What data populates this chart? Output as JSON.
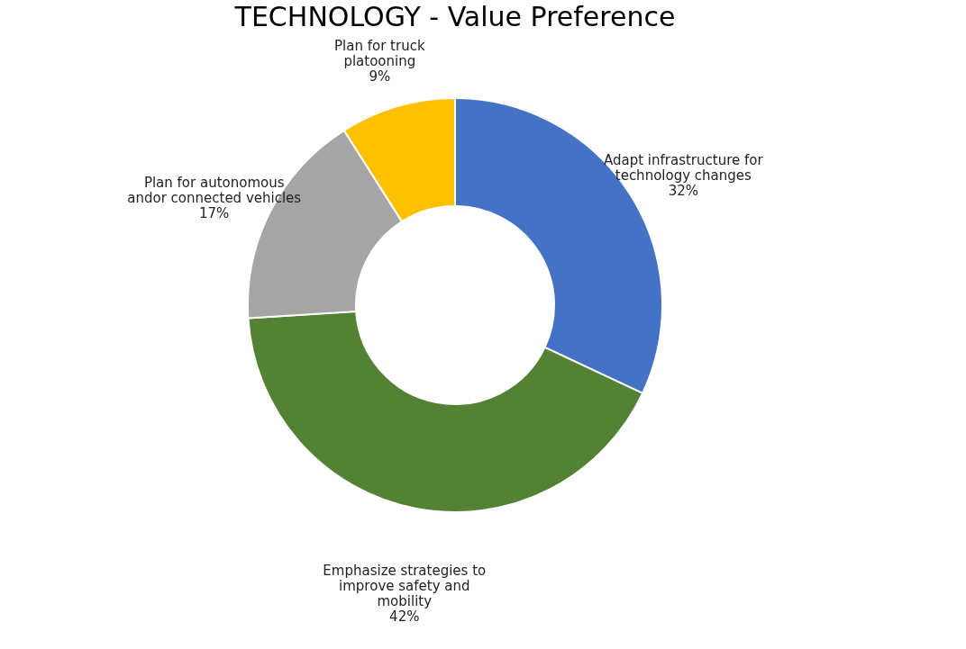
{
  "chart_data": {
    "type": "donut",
    "title": "TECHNOLOGY - Value Preference",
    "categories": [
      "Adapt infrastructure for technology changes",
      "Emphasize strategies to improve safety and mobility",
      "Plan for autonomous andor connected vehicles",
      "Plan for truck platooning"
    ],
    "values": [
      32,
      42,
      17,
      9
    ],
    "colors": [
      "#4472c4",
      "#548235",
      "#a5a5a5",
      "#ffc000"
    ],
    "value_labels": [
      "32%",
      "42%",
      "17%",
      "9%"
    ],
    "legend": false
  }
}
